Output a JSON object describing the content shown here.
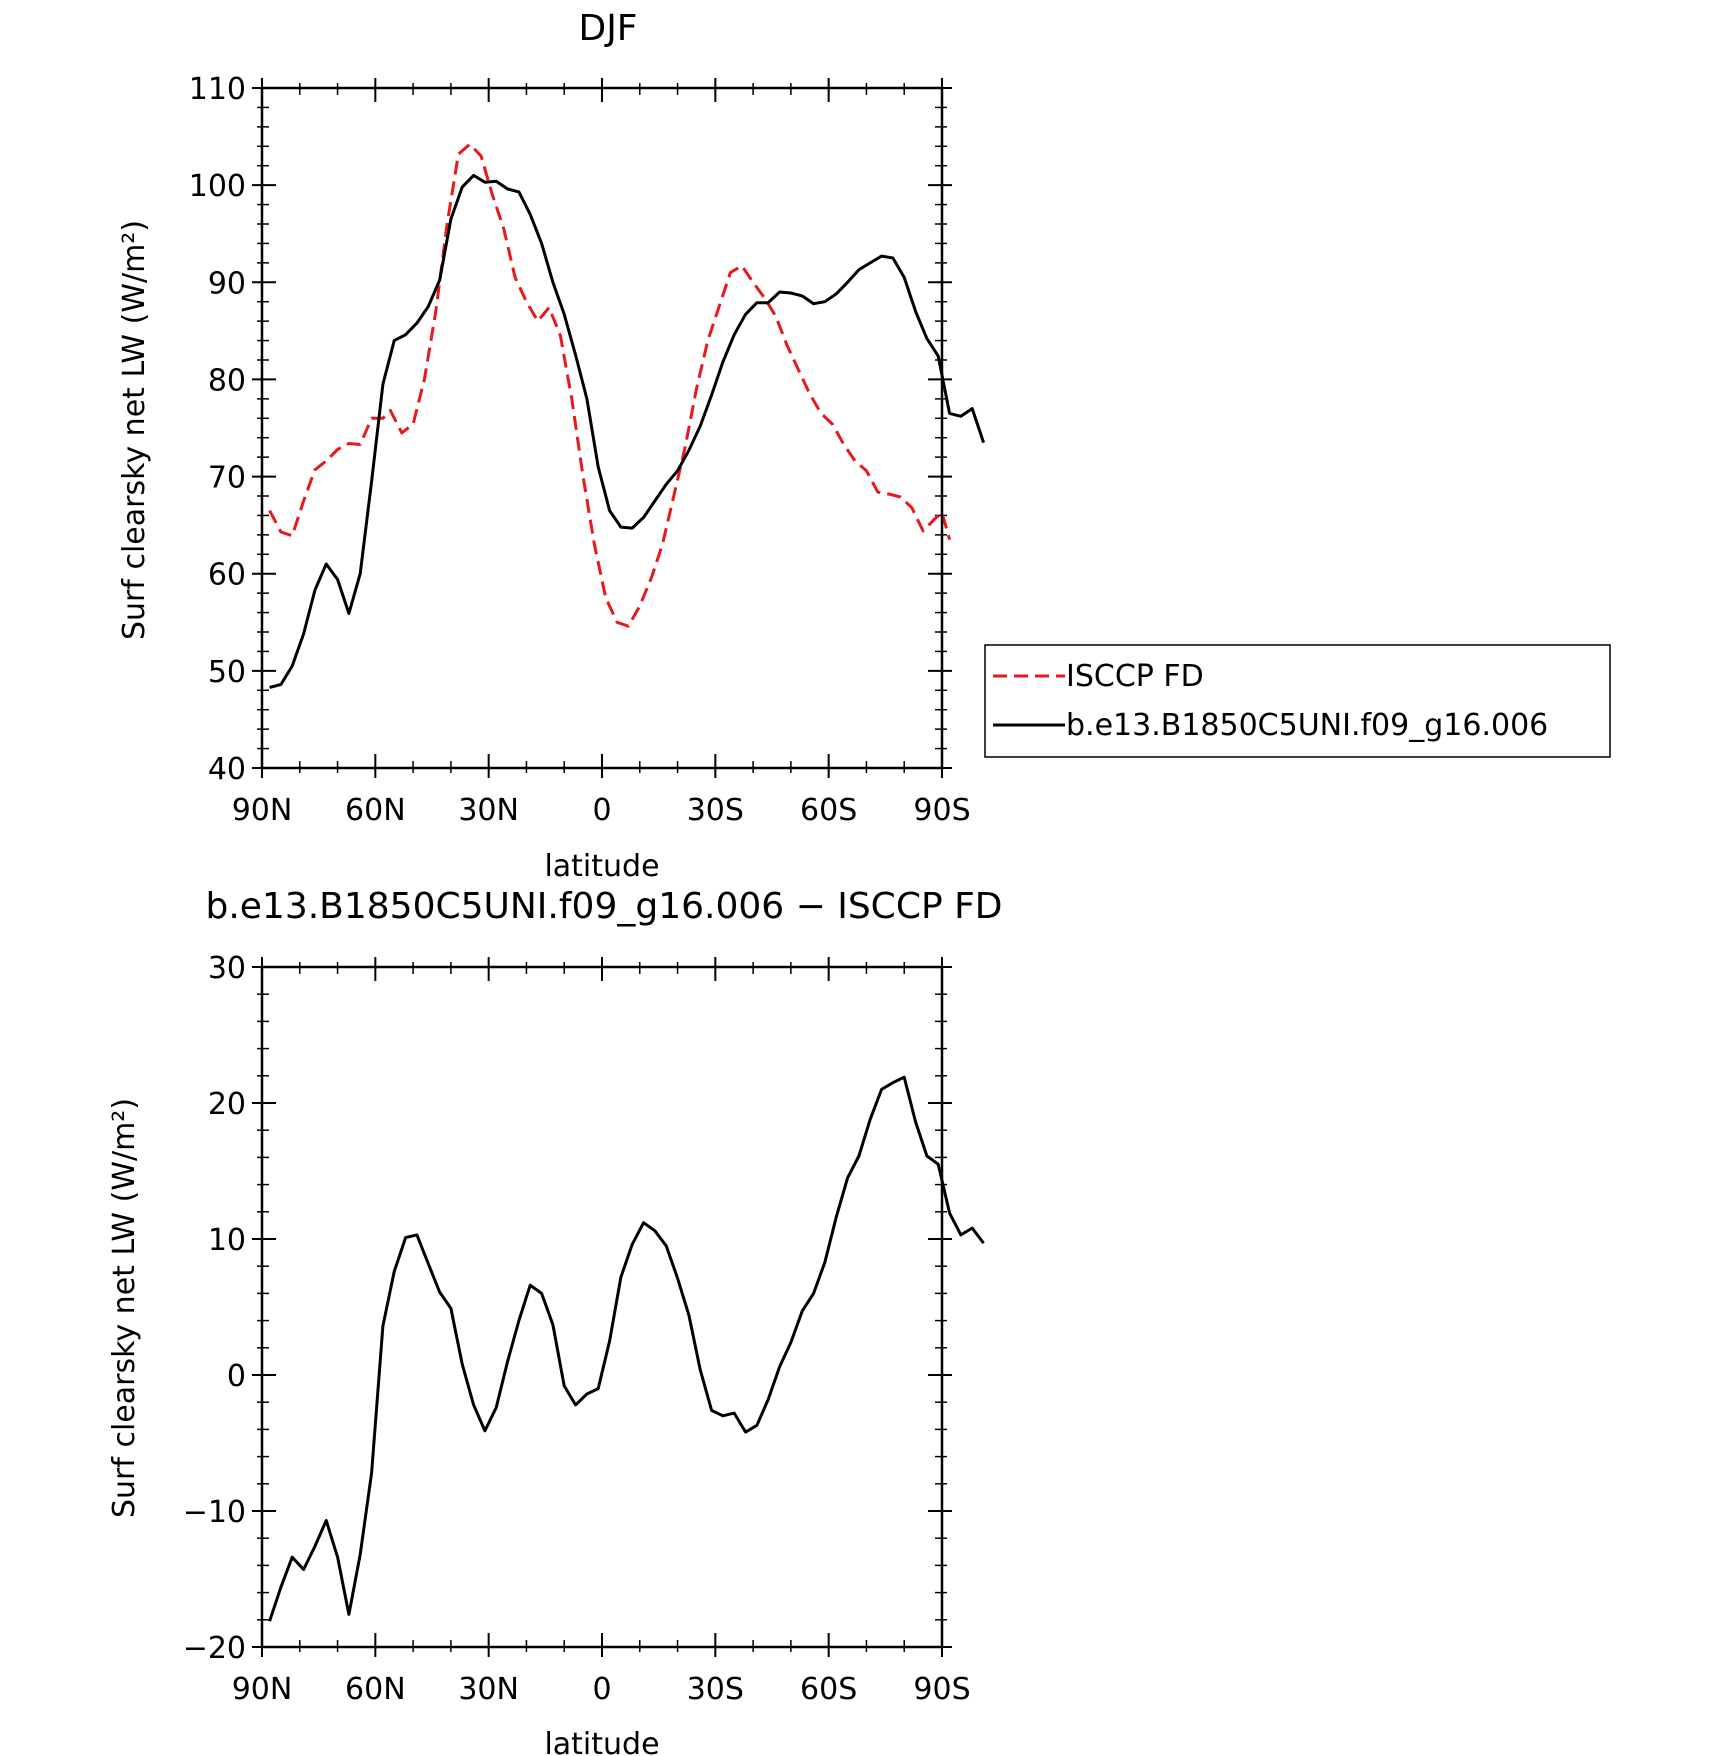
{
  "chart_data": [
    {
      "type": "line",
      "title": "DJF",
      "xlabel": "latitude",
      "ylabel": "Surf clearsky net LW (W/m²)",
      "xlim": [
        -90,
        90
      ],
      "ylim": [
        40,
        110
      ],
      "x_tick_values": [
        -90,
        -60,
        -30,
        0,
        30,
        60,
        90
      ],
      "x_tick_labels": [
        "90N",
        "60N",
        "30N",
        "0",
        "30S",
        "60S",
        "90S"
      ],
      "y_ticks": [
        40,
        50,
        60,
        70,
        80,
        90,
        100,
        110
      ],
      "y_tick_labels": [
        "40",
        "50",
        "60",
        "70",
        "80",
        "90",
        "100",
        "110"
      ],
      "legend": {
        "placement": "right",
        "entries": [
          "ISCCP FD",
          "b.e13.B1850C5UNI.f09_g16.006"
        ]
      },
      "series": [
        {
          "name": "ISCCP FD",
          "color": "#e8191c",
          "dash": "dashed",
          "points": [
            [
              -88,
              66.5
            ],
            [
              -85,
              64.3
            ],
            [
              -82,
              63.9
            ],
            [
              -79,
              67.5
            ],
            [
              -76,
              70.7
            ],
            [
              -73,
              71.6
            ],
            [
              -70,
              72.8
            ],
            [
              -67,
              73.4
            ],
            [
              -64,
              73.3
            ],
            [
              -61,
              76.0
            ],
            [
              -58,
              76.0
            ],
            [
              -56,
              76.8
            ],
            [
              -53,
              74.5
            ],
            [
              -50,
              75.4
            ],
            [
              -47,
              80.0
            ],
            [
              -44,
              87.0
            ],
            [
              -41,
              96.0
            ],
            [
              -38,
              103.2
            ],
            [
              -35,
              104.2
            ],
            [
              -32,
              103.0
            ],
            [
              -29,
              99.0
            ],
            [
              -26,
              95.5
            ],
            [
              -23,
              90.5
            ],
            [
              -20,
              88.0
            ],
            [
              -17,
              86.0
            ],
            [
              -14,
              87.4
            ],
            [
              -11,
              84.5
            ],
            [
              -8,
              78.0
            ],
            [
              -5,
              70.0
            ],
            [
              -2,
              63.0
            ],
            [
              1,
              57.5
            ],
            [
              4,
              55.0
            ],
            [
              7,
              54.6
            ],
            [
              10,
              56.7
            ],
            [
              13,
              59.5
            ],
            [
              16,
              63.0
            ],
            [
              19,
              68.0
            ],
            [
              22,
              73.0
            ],
            [
              25,
              79.0
            ],
            [
              28,
              84.0
            ],
            [
              31,
              87.5
            ],
            [
              34,
              91.0
            ],
            [
              37,
              91.7
            ],
            [
              40,
              90.0
            ],
            [
              43,
              88.4
            ],
            [
              46,
              86.5
            ],
            [
              49,
              83.5
            ],
            [
              52,
              81.0
            ],
            [
              55,
              78.5
            ],
            [
              58,
              76.5
            ],
            [
              61,
              75.4
            ],
            [
              64,
              73.3
            ],
            [
              67,
              71.6
            ],
            [
              70,
              70.6
            ],
            [
              73,
              68.4
            ],
            [
              76,
              68.2
            ],
            [
              79,
              67.9
            ],
            [
              82,
              66.8
            ],
            [
              85,
              64.4
            ],
            [
              88,
              65.6
            ],
            [
              90,
              66.3
            ],
            [
              92,
              63.5
            ]
          ]
        },
        {
          "name": "b.e13.B1850C5UNI.f09_g16.006",
          "color": "#000000",
          "dash": "solid",
          "points": [
            [
              -88,
              48.3
            ],
            [
              -85,
              48.6
            ],
            [
              -82,
              50.5
            ],
            [
              -79,
              53.8
            ],
            [
              -76,
              58.3
            ],
            [
              -73,
              61.0
            ],
            [
              -70,
              59.4
            ],
            [
              -67,
              55.9
            ],
            [
              -64,
              60.0
            ],
            [
              -61,
              69.5
            ],
            [
              -58,
              79.5
            ],
            [
              -55,
              84.0
            ],
            [
              -52,
              84.6
            ],
            [
              -49,
              85.8
            ],
            [
              -46,
              87.5
            ],
            [
              -43,
              90.2
            ],
            [
              -40,
              96.5
            ],
            [
              -37,
              99.8
            ],
            [
              -34,
              101.0
            ],
            [
              -31,
              100.3
            ],
            [
              -28,
              100.4
            ],
            [
              -25,
              99.6
            ],
            [
              -22,
              99.3
            ],
            [
              -19,
              97.0
            ],
            [
              -16,
              94.0
            ],
            [
              -13,
              90.0
            ],
            [
              -10,
              86.7
            ],
            [
              -7,
              82.5
            ],
            [
              -4,
              78.0
            ],
            [
              -1,
              71.0
            ],
            [
              2,
              66.5
            ],
            [
              5,
              64.8
            ],
            [
              8,
              64.7
            ],
            [
              11,
              65.8
            ],
            [
              14,
              67.5
            ],
            [
              17,
              69.2
            ],
            [
              20,
              70.6
            ],
            [
              23,
              72.7
            ],
            [
              26,
              75.2
            ],
            [
              29,
              78.4
            ],
            [
              32,
              81.8
            ],
            [
              35,
              84.6
            ],
            [
              38,
              86.7
            ],
            [
              41,
              87.9
            ],
            [
              44,
              87.9
            ],
            [
              47,
              89.0
            ],
            [
              50,
              88.9
            ],
            [
              53,
              88.6
            ],
            [
              56,
              87.8
            ],
            [
              59,
              88.0
            ],
            [
              62,
              88.8
            ],
            [
              65,
              90.0
            ],
            [
              68,
              91.3
            ],
            [
              71,
              92.0
            ],
            [
              74,
              92.7
            ],
            [
              77,
              92.5
            ],
            [
              80,
              90.5
            ],
            [
              83,
              87.0
            ],
            [
              86,
              84.2
            ],
            [
              89,
              82.4
            ],
            [
              92,
              76.5
            ],
            [
              95,
              76.2
            ],
            [
              98,
              77.0
            ],
            [
              101,
              73.5
            ]
          ]
        }
      ]
    },
    {
      "type": "line",
      "title": "b.e13.B1850C5UNI.f09_g16.006 − ISCCP FD",
      "xlabel": "latitude",
      "ylabel": "Surf clearsky net LW (W/m²)",
      "xlim": [
        -90,
        90
      ],
      "ylim": [
        -20,
        30
      ],
      "x_tick_values": [
        -90,
        -60,
        -30,
        0,
        30,
        60,
        90
      ],
      "x_tick_labels": [
        "90N",
        "60N",
        "30N",
        "0",
        "30S",
        "60S",
        "90S"
      ],
      "y_ticks": [
        -20,
        -10,
        0,
        10,
        20,
        30
      ],
      "y_tick_labels": [
        "−20",
        "−10",
        "0",
        "10",
        "20",
        "30"
      ],
      "series": [
        {
          "color": "#000000",
          "dash": "solid",
          "points": [
            [
              -88,
              -18.1
            ],
            [
              -85,
              -15.6
            ],
            [
              -82,
              -13.4
            ],
            [
              -79,
              -14.3
            ],
            [
              -76,
              -12.6
            ],
            [
              -73,
              -10.7
            ],
            [
              -70,
              -13.4
            ],
            [
              -67,
              -17.6
            ],
            [
              -64,
              -13.2
            ],
            [
              -61,
              -7.2
            ],
            [
              -58,
              3.6
            ],
            [
              -55,
              7.6
            ],
            [
              -52,
              10.1
            ],
            [
              -49,
              10.3
            ],
            [
              -46,
              8.2
            ],
            [
              -43,
              6.1
            ],
            [
              -40,
              4.9
            ],
            [
              -37,
              0.8
            ],
            [
              -34,
              -2.2
            ],
            [
              -31,
              -4.1
            ],
            [
              -28,
              -2.4
            ],
            [
              -25,
              1.0
            ],
            [
              -22,
              4.0
            ],
            [
              -19,
              6.6
            ],
            [
              -16,
              6.0
            ],
            [
              -13,
              3.7
            ],
            [
              -10,
              -0.8
            ],
            [
              -7,
              -2.2
            ],
            [
              -4,
              -1.4
            ],
            [
              -1,
              -1.0
            ],
            [
              2,
              2.5
            ],
            [
              5,
              7.2
            ],
            [
              8,
              9.6
            ],
            [
              11,
              11.2
            ],
            [
              14,
              10.6
            ],
            [
              17,
              9.5
            ],
            [
              20,
              7.1
            ],
            [
              23,
              4.4
            ],
            [
              26,
              0.4
            ],
            [
              29,
              -2.6
            ],
            [
              32,
              -3.0
            ],
            [
              35,
              -2.8
            ],
            [
              38,
              -4.2
            ],
            [
              41,
              -3.7
            ],
            [
              44,
              -1.8
            ],
            [
              47,
              0.6
            ],
            [
              50,
              2.4
            ],
            [
              53,
              4.7
            ],
            [
              56,
              6.0
            ],
            [
              59,
              8.3
            ],
            [
              62,
              11.6
            ],
            [
              65,
              14.5
            ],
            [
              68,
              16.1
            ],
            [
              71,
              18.8
            ],
            [
              74,
              21.0
            ],
            [
              77,
              21.5
            ],
            [
              80,
              21.9
            ],
            [
              83,
              18.6
            ],
            [
              86,
              16.1
            ],
            [
              89,
              15.5
            ],
            [
              92,
              11.9
            ],
            [
              95,
              10.3
            ],
            [
              98,
              10.8
            ],
            [
              101,
              9.7
            ]
          ]
        }
      ]
    }
  ]
}
